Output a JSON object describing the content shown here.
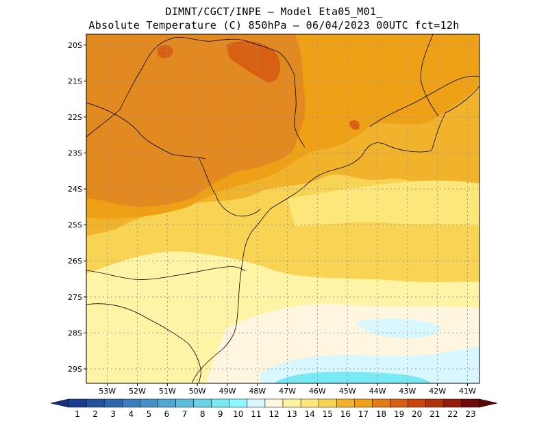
{
  "header": {
    "line1": "DIMNT/CGCT/INPE –  Model Eta05_M01_",
    "line2": "Absolute Temperature (C) 850hPa –  06/04/2023 00UTC fct=12h"
  },
  "map": {
    "lat_labels": [
      "20S",
      "21S",
      "22S",
      "23S",
      "24S",
      "25S",
      "26S",
      "27S",
      "28S",
      "29S"
    ],
    "lon_labels": [
      "53W",
      "52W",
      "51W",
      "50W",
      "49W",
      "48W",
      "47W",
      "46W",
      "45W",
      "44W",
      "43W",
      "42W",
      "41W"
    ],
    "lat_range": [
      -29.4,
      -19.7
    ],
    "lon_range": [
      -53.7,
      -40.6
    ],
    "grid": true
  },
  "colorbar": {
    "labels": [
      "1",
      "2",
      "3",
      "4",
      "5",
      "6",
      "7",
      "8",
      "9",
      "10",
      "11",
      "12",
      "13",
      "14",
      "15",
      "16",
      "17",
      "18",
      "19",
      "20",
      "21",
      "22",
      "23"
    ],
    "colors": [
      "#1b3c8c",
      "#25519d",
      "#2e67ad",
      "#3a7cbd",
      "#4591c6",
      "#52a7d0",
      "#5ebddb",
      "#6bd2e6",
      "#79e9f3",
      "#8ff8ff",
      "#d9f7ff",
      "#fff6e0",
      "#fff3a6",
      "#fde67a",
      "#f8d354",
      "#f2b32c",
      "#eea116",
      "#e27d16",
      "#d86013",
      "#c8470f",
      "#ae320c",
      "#911d0a",
      "#6e0a0a"
    ],
    "left_arrow_color": "#1a2e80",
    "right_arrow_color": "#5a0505"
  }
}
